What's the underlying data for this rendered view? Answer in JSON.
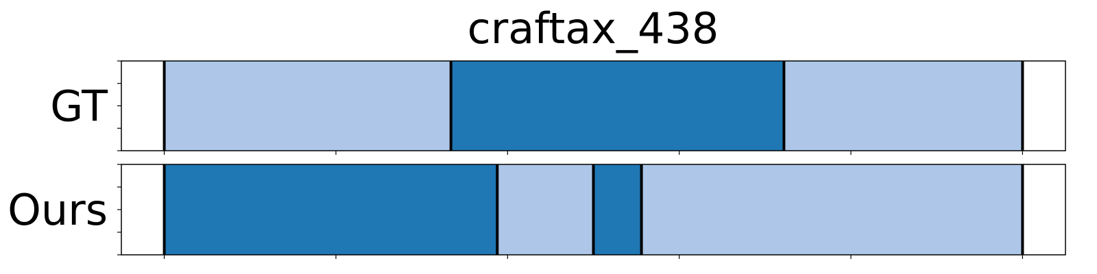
{
  "chart_data": {
    "type": "segmentation",
    "title": "craftax_438",
    "x_range": [
      -0.25,
      5.25
    ],
    "x_ticks": [
      0,
      1,
      2,
      3,
      4,
      5
    ],
    "colors": {
      "light": "#aec7e8",
      "dark": "#1f77b4",
      "boundary": "#000000",
      "frame": "#000000"
    },
    "rows": [
      {
        "label": "GT",
        "segments": [
          {
            "start": 0.0,
            "end": 1.67,
            "color": "light"
          },
          {
            "start": 1.67,
            "end": 3.61,
            "color": "dark"
          },
          {
            "start": 3.61,
            "end": 5.0,
            "color": "light"
          }
        ],
        "boundaries": [
          0.0,
          1.67,
          3.61,
          5.0
        ]
      },
      {
        "label": "Ours",
        "segments": [
          {
            "start": 0.0,
            "end": 1.94,
            "color": "dark"
          },
          {
            "start": 1.94,
            "end": 2.5,
            "color": "light"
          },
          {
            "start": 2.5,
            "end": 2.78,
            "color": "dark"
          },
          {
            "start": 2.78,
            "end": 5.0,
            "color": "light"
          }
        ],
        "boundaries": [
          0.0,
          1.94,
          2.5,
          2.78,
          5.0
        ]
      }
    ]
  }
}
